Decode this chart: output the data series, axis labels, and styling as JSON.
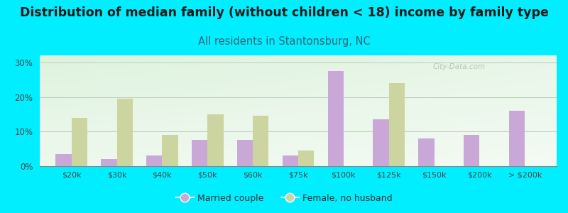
{
  "title": "Distribution of median family (without children < 18) income by family type",
  "subtitle": "All residents in Stantonsburg, NC",
  "categories": [
    "$20k",
    "$30k",
    "$40k",
    "$50k",
    "$60k",
    "$75k",
    "$100k",
    "$125k",
    "$150k",
    "$200k",
    "> $200k"
  ],
  "married_couple": [
    3.5,
    2.0,
    3.0,
    7.5,
    7.5,
    3.0,
    27.5,
    13.5,
    8.0,
    9.0,
    16.0
  ],
  "female_no_husband": [
    14.0,
    19.5,
    9.0,
    15.0,
    14.5,
    4.5,
    0.0,
    24.0,
    0.0,
    0.0,
    0.0
  ],
  "married_color": "#c9a8d8",
  "female_color": "#ccd5a0",
  "fig_facecolor": "#00eeff",
  "ylim": [
    0,
    32
  ],
  "yticks": [
    0,
    10,
    20,
    30
  ],
  "bar_width": 0.35,
  "title_fontsize": 12.5,
  "subtitle_fontsize": 10.5,
  "subtitle_color": "#336677",
  "watermark": "City-Data.com",
  "legend_married": "Married couple",
  "legend_female": "Female, no husband"
}
